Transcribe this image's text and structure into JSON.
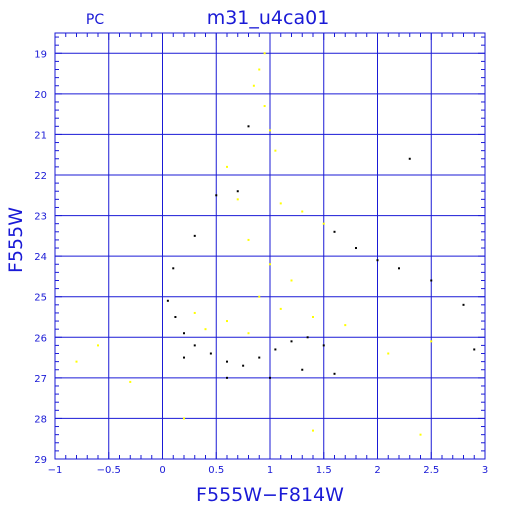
{
  "chart_data": {
    "type": "scatter",
    "corner_label": "PC",
    "title": "m31_u4ca01",
    "xlabel": "F555W−F814W",
    "ylabel": "F555W",
    "xlim": [
      -1,
      3
    ],
    "ylim": [
      29,
      18.5
    ],
    "y_inverted": true,
    "grid": true,
    "x_ticks": [
      -1,
      -0.5,
      0,
      0.5,
      1,
      1.5,
      2,
      2.5,
      3
    ],
    "x_tick_labels": [
      "−1",
      "−0.5",
      "0",
      "0.5",
      "1",
      "1.5",
      "2",
      "2.5",
      "3"
    ],
    "y_ticks": [
      19,
      20,
      21,
      22,
      23,
      24,
      25,
      26,
      27,
      28,
      29
    ],
    "y_tick_labels": [
      "19",
      "20",
      "21",
      "22",
      "23",
      "24",
      "25",
      "26",
      "27",
      "28",
      "29"
    ],
    "colors": {
      "axes": "#1a1ad6",
      "grid": "#1a1ad6",
      "series_black": "#000000",
      "series_yellow": "#ffff00"
    },
    "series": [
      {
        "color": "#000000",
        "points": [
          [
            0.05,
            25.1
          ],
          [
            0.12,
            25.5
          ],
          [
            0.2,
            25.9
          ],
          [
            0.3,
            26.2
          ],
          [
            0.45,
            26.4
          ],
          [
            0.6,
            26.6
          ],
          [
            0.75,
            26.7
          ],
          [
            0.9,
            26.5
          ],
          [
            1.05,
            26.3
          ],
          [
            1.2,
            26.1
          ],
          [
            1.35,
            26.0
          ],
          [
            1.5,
            26.2
          ],
          [
            0.1,
            24.3
          ],
          [
            0.3,
            23.5
          ],
          [
            0.5,
            22.5
          ],
          [
            0.7,
            22.4
          ],
          [
            1.6,
            23.4
          ],
          [
            1.8,
            23.8
          ],
          [
            2.0,
            24.1
          ],
          [
            2.2,
            24.3
          ],
          [
            2.5,
            24.6
          ],
          [
            2.8,
            25.2
          ],
          [
            2.9,
            26.3
          ],
          [
            2.3,
            21.6
          ],
          [
            0.8,
            20.8
          ],
          [
            1.3,
            26.8
          ],
          [
            0.2,
            26.5
          ],
          [
            0.6,
            27.0
          ],
          [
            1.0,
            27.0
          ],
          [
            1.6,
            26.9
          ]
        ]
      },
      {
        "color": "#ffff00",
        "points": [
          [
            0.95,
            19.0
          ],
          [
            0.9,
            19.4
          ],
          [
            0.85,
            19.8
          ],
          [
            0.95,
            20.3
          ],
          [
            1.0,
            20.9
          ],
          [
            1.05,
            21.4
          ],
          [
            0.6,
            21.8
          ],
          [
            0.7,
            22.6
          ],
          [
            1.1,
            22.7
          ],
          [
            1.3,
            22.9
          ],
          [
            1.5,
            23.2
          ],
          [
            0.8,
            23.6
          ],
          [
            1.0,
            24.2
          ],
          [
            1.2,
            24.6
          ],
          [
            0.9,
            25.0
          ],
          [
            1.1,
            25.3
          ],
          [
            0.6,
            25.6
          ],
          [
            0.4,
            25.8
          ],
          [
            0.3,
            25.4
          ],
          [
            0.8,
            25.9
          ],
          [
            1.4,
            25.5
          ],
          [
            1.7,
            25.7
          ],
          [
            2.1,
            26.4
          ],
          [
            2.5,
            26.1
          ],
          [
            -0.6,
            26.2
          ],
          [
            -0.8,
            26.6
          ],
          [
            -0.3,
            27.1
          ],
          [
            0.2,
            28.0
          ],
          [
            1.4,
            28.3
          ],
          [
            2.4,
            28.4
          ]
        ]
      }
    ]
  }
}
